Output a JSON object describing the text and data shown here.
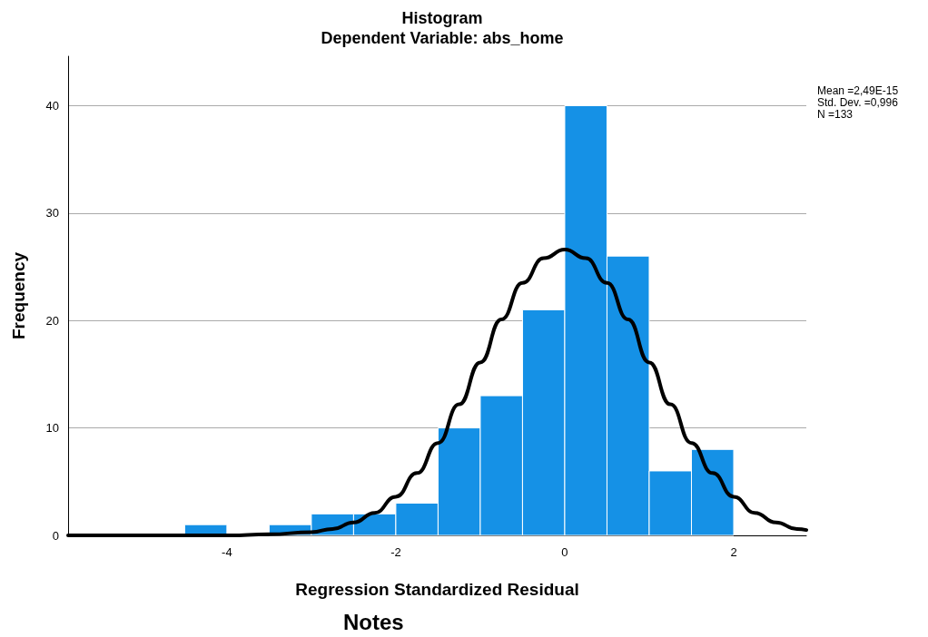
{
  "chart_data": {
    "type": "histogram",
    "title": "Histogram",
    "subtitle": "Dependent Variable: abs_home",
    "xlabel": "Regression Standardized Residual",
    "ylabel": "Frequency",
    "annotations": [
      "Mean =2,49E-15",
      "Std. Dev. =0,996",
      "N =133",
      "Notes"
    ],
    "series": [
      {
        "color": "#1591e6",
        "bins": [
          -4.5,
          -4,
          -3.5,
          -3,
          -2.5,
          -2,
          -1.5,
          -1,
          -0.5,
          0,
          0.5,
          1,
          1.5,
          2
        ],
        "values": [
          1,
          0,
          1,
          2,
          2,
          3,
          10,
          13,
          21,
          40,
          26,
          6,
          8
        ]
      },
      {
        "type": "line",
        "color": "#000000",
        "x": [
          -5.88,
          -4.5,
          -4,
          -3.5,
          -3,
          -2.75,
          -2.5,
          -2.25,
          -2,
          -1.75,
          -1.5,
          -1.25,
          -1,
          -0.75,
          -0.5,
          -0.25,
          0,
          0.25,
          0.5,
          0.75,
          1,
          1.25,
          1.5,
          1.75,
          2,
          2.25,
          2.5,
          2.75,
          2.86
        ],
        "values": [
          0,
          0,
          0,
          0.1,
          0.3,
          0.6,
          1.2,
          2.1,
          3.6,
          5.8,
          8.6,
          12.2,
          16.1,
          20.1,
          23.5,
          25.8,
          26.6,
          25.8,
          23.5,
          20.1,
          16.1,
          12.2,
          8.6,
          5.8,
          3.6,
          2.1,
          1.2,
          0.6,
          0.5
        ]
      }
    ],
    "xlim": [
      -5.88,
      2.86
    ],
    "xticks": [
      -4,
      -2,
      0,
      2
    ],
    "ylim": [
      0,
      44.6
    ],
    "yticks": [
      0,
      10,
      20,
      30,
      40
    ],
    "grid": "y",
    "marker": "none",
    "line_style": "solid"
  }
}
